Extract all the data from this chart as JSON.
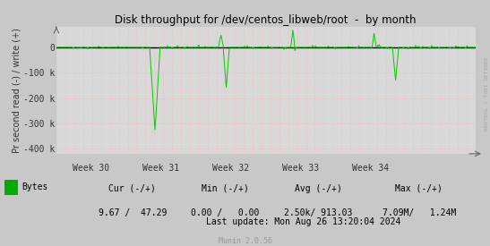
{
  "title": "Disk throughput for /dev/centos_libweb/root  -  by month",
  "ylabel": "Pr second read (-) / write (+)",
  "xlabel_ticks": [
    "Week 30",
    "Week 31",
    "Week 32",
    "Week 33",
    "Week 34"
  ],
  "ylim": [
    -420000,
    80000
  ],
  "yticks": [
    -400000,
    -300000,
    -200000,
    -100000,
    0
  ],
  "ytick_labels": [
    "-400 k",
    "-300 k",
    "-200 k",
    "-100 k",
    "0"
  ],
  "bg_color": "#c8c8c8",
  "plot_bg_color": "#d8d8d8",
  "line_color": "#00cc00",
  "zero_line_color": "#000000",
  "legend_label": "Bytes",
  "legend_color": "#00aa00",
  "cur_label": "Cur (-/+)",
  "min_label": "Min (-/+)",
  "avg_label": "Avg (-/+)",
  "max_label": "Max (-/+)",
  "cur_val": "9.67 /  47.29",
  "min_val": "0.00 /   0.00",
  "avg_val": "2.50k/ 913.03",
  "max_val": "7.09M/   1.24M",
  "last_update": "Last update: Mon Aug 26 13:20:04 2024",
  "munin_label": "Munin 2.0.56",
  "rrdtool_label": "RRDTOOL / TOBI OETIKER",
  "n_points": 800
}
